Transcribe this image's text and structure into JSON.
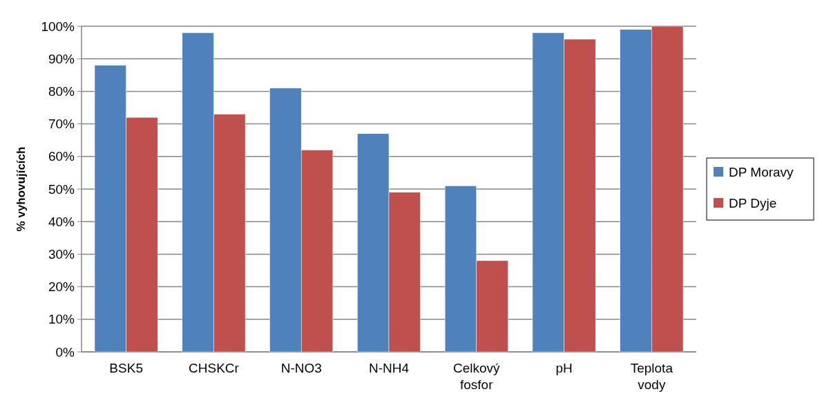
{
  "chart_data": {
    "type": "bar",
    "ylabel": "% vyhovujících",
    "categories": [
      "BSK5",
      "CHSKCr",
      "N-NO3",
      "N-NH4",
      "Celkový fosfor",
      "pH",
      "Teplota vody"
    ],
    "series": [
      {
        "name": "DP Moravy",
        "color": "#4f81bd",
        "values": [
          88,
          98,
          81,
          67,
          51,
          98,
          99
        ]
      },
      {
        "name": "DP Dyje",
        "color": "#c0504d",
        "values": [
          72,
          73,
          62,
          49,
          28,
          96,
          100
        ]
      }
    ],
    "ylim": [
      0,
      100
    ],
    "yticks": [
      {
        "value": 0,
        "label": "0%"
      },
      {
        "value": 10,
        "label": "10%"
      },
      {
        "value": 20,
        "label": "20%"
      },
      {
        "value": 30,
        "label": "30%"
      },
      {
        "value": 40,
        "label": "40%"
      },
      {
        "value": 50,
        "label": "50%"
      },
      {
        "value": 60,
        "label": "60%"
      },
      {
        "value": 70,
        "label": "70%"
      },
      {
        "value": 80,
        "label": "80%"
      },
      {
        "value": 90,
        "label": "90%"
      },
      {
        "value": 100,
        "label": "100%"
      }
    ],
    "grid": "y",
    "legend": "right"
  }
}
